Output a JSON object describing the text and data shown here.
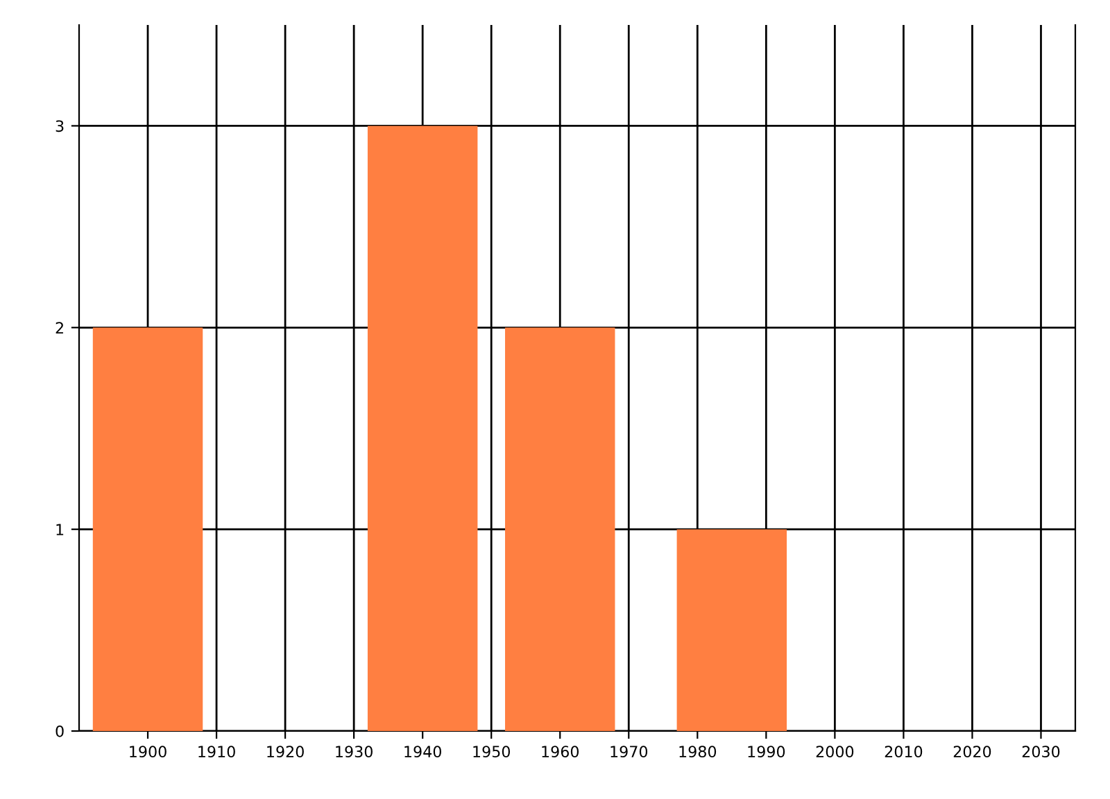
{
  "chart_data": {
    "type": "bar",
    "x": [
      1900,
      1940,
      1960,
      1985
    ],
    "values": [
      2,
      3,
      2,
      1
    ],
    "color": "#ff7f41",
    "xlim": [
      1890,
      2035
    ],
    "xticks": [
      1900,
      1910,
      1920,
      1930,
      1940,
      1950,
      1960,
      1970,
      1980,
      1990,
      2000,
      2010,
      2020,
      2030
    ],
    "ylim": [
      0,
      3.5
    ],
    "yticks": [
      0,
      1,
      2,
      3
    ],
    "grid": true
  }
}
